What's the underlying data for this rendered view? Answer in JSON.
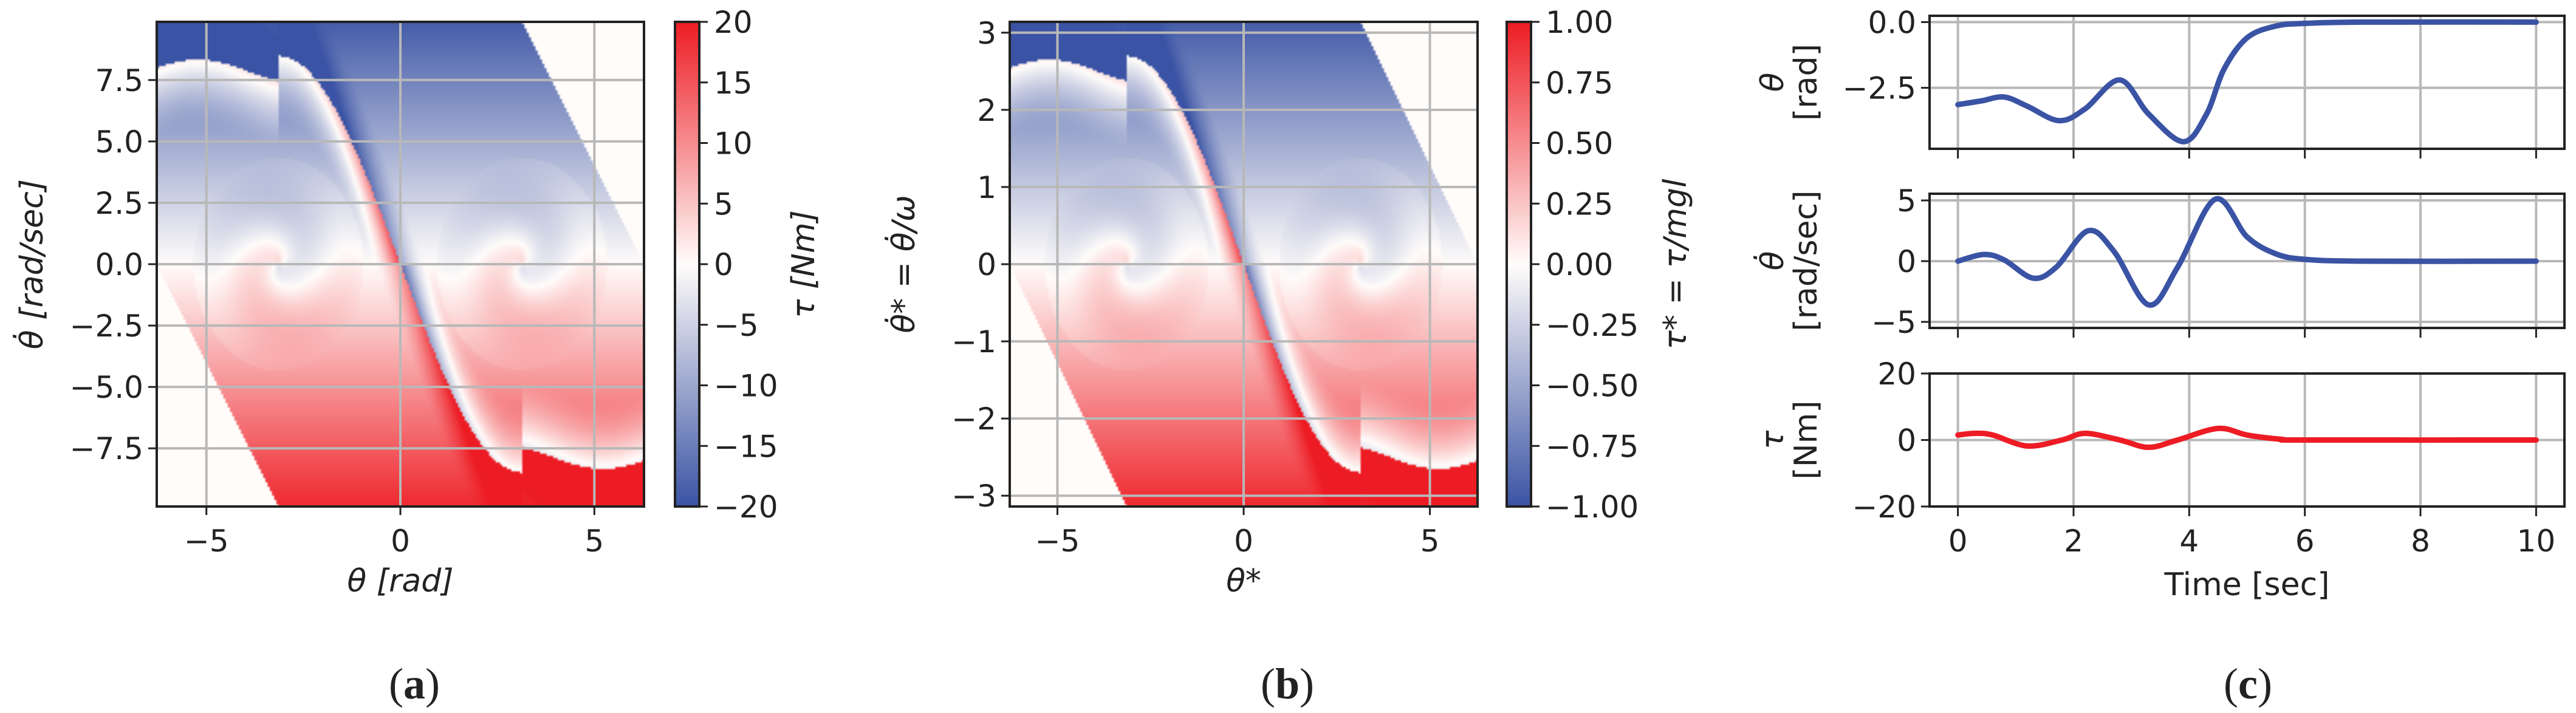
{
  "captions": {
    "a": "(a)",
    "b": "(b)",
    "c": "(c)"
  },
  "colors": {
    "blue": "#3a53a4",
    "white": "#fffcfa",
    "red": "#ed1c24",
    "grid": "#b8b8b8",
    "frame": "#222222"
  },
  "chart_data": [
    {
      "panel": "a",
      "type": "heatmap",
      "xlabel": "θ [rad]",
      "ylabel": "θ̇ [rad/sec]",
      "xlim": [
        -6.28,
        6.28
      ],
      "ylim": [
        -9.87,
        9.87
      ],
      "xticks": [
        -5,
        0,
        5
      ],
      "xtick_labels": [
        "−5",
        "0",
        "5"
      ],
      "yticks": [
        -7.5,
        -5,
        -2.5,
        0,
        2.5,
        5,
        7.5
      ],
      "ytick_labels": [
        "−7.5",
        "−5.0",
        "−2.5",
        "0.0",
        "2.5",
        "5.0",
        "7.5"
      ],
      "grid": true,
      "value_scale": 20,
      "colorbar": {
        "label": "τ [Nm]",
        "range": [
          -20,
          20
        ],
        "ticks": [
          -20,
          -15,
          -10,
          -5,
          0,
          5,
          10,
          15,
          20
        ],
        "tick_labels": [
          "−20",
          "−15",
          "−10",
          "−5",
          "0",
          "5",
          "10",
          "15",
          "20"
        ]
      }
    },
    {
      "panel": "b",
      "type": "heatmap",
      "xlabel": "θ*",
      "ylabel": "θ̇* = θ̇/ω",
      "xlim": [
        -6.28,
        6.28
      ],
      "ylim": [
        -3.14,
        3.14
      ],
      "xticks": [
        -5,
        0,
        5
      ],
      "xtick_labels": [
        "−5",
        "0",
        "5"
      ],
      "yticks": [
        -3,
        -2,
        -1,
        0,
        1,
        2,
        3
      ],
      "ytick_labels": [
        "−3",
        "−2",
        "−1",
        "0",
        "1",
        "2",
        "3"
      ],
      "grid": true,
      "value_scale": 1,
      "colorbar": {
        "label": "τ* = τ/mgl",
        "range": [
          -1,
          1
        ],
        "ticks": [
          -1,
          -0.75,
          -0.5,
          -0.25,
          0,
          0.25,
          0.5,
          0.75,
          1
        ],
        "tick_labels": [
          "−1.00",
          "−0.75",
          "−0.50",
          "−0.25",
          "0.00",
          "0.25",
          "0.50",
          "0.75",
          "1.00"
        ]
      }
    },
    {
      "panel": "c",
      "type": "line",
      "xlabel": "Time [sec]",
      "xlim": [
        -0.49,
        10.49
      ],
      "xticks": [
        0,
        2,
        4,
        6,
        8,
        10
      ],
      "xtick_labels": [
        "0",
        "2",
        "4",
        "6",
        "8",
        "10"
      ],
      "grid": true,
      "subplots": [
        {
          "ylabel": "θ",
          "yunit": "[rad]",
          "ylim": [
            -4.82,
            0.24
          ],
          "yticks": [
            0,
            -2.5
          ],
          "ytick_labels": [
            "0.0",
            "−2.5"
          ],
          "series": {
            "name": "θ",
            "color": "#3a53a4",
            "t": [
              0,
              0.4,
              0.8,
              1.2,
              1.75,
              2.2,
              2.8,
              3.3,
              3.9,
              4.3,
              4.6,
              5.0,
              5.5,
              6.0,
              7.0,
              10.0
            ],
            "y": [
              -3.14,
              -3.0,
              -2.85,
              -3.2,
              -3.75,
              -3.3,
              -2.2,
              -3.5,
              -4.55,
              -3.5,
              -1.8,
              -0.6,
              -0.15,
              -0.05,
              0,
              0
            ]
          }
        },
        {
          "ylabel": "θ̇",
          "yunit": "[rad/sec]",
          "ylim": [
            -5.5,
            5.55
          ],
          "yticks": [
            5,
            0,
            -5
          ],
          "ytick_labels": [
            "5",
            "0",
            "−5"
          ],
          "series": {
            "name": "θ̇",
            "color": "#3a53a4",
            "t": [
              0,
              0.45,
              0.8,
              1.3,
              1.7,
              2.25,
              2.7,
              3.3,
              3.8,
              4.45,
              5.0,
              5.5,
              6.0,
              7.0,
              10.0
            ],
            "y": [
              0,
              0.55,
              0.1,
              -1.4,
              -0.5,
              2.5,
              0.8,
              -3.6,
              -0.5,
              5.1,
              2.0,
              0.6,
              0.15,
              0,
              0
            ]
          }
        },
        {
          "ylabel": "τ",
          "yunit": "[Nm]",
          "ylim": [
            -20,
            20
          ],
          "yticks": [
            20,
            0,
            -20
          ],
          "ytick_labels": [
            "20",
            "0",
            "−20"
          ],
          "series": {
            "name": "τ",
            "color": "#ed1c24",
            "t": [
              0,
              0.3,
              0.6,
              1.2,
              1.8,
              2.2,
              2.8,
              3.3,
              3.8,
              4.5,
              5.0,
              5.6,
              6.0,
              10.0
            ],
            "y": [
              1.5,
              2.0,
              1.5,
              -1.8,
              0,
              2.0,
              0,
              -2.2,
              0,
              3.5,
              1.5,
              0.2,
              0,
              0
            ]
          }
        }
      ]
    }
  ]
}
